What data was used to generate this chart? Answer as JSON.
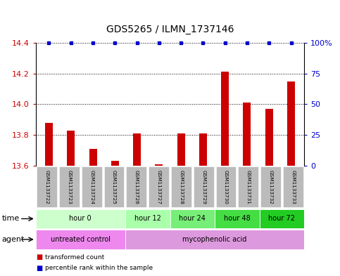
{
  "title": "GDS5265 / ILMN_1737146",
  "samples": [
    "GSM1133722",
    "GSM1133723",
    "GSM1133724",
    "GSM1133725",
    "GSM1133726",
    "GSM1133727",
    "GSM1133728",
    "GSM1133729",
    "GSM1133730",
    "GSM1133731",
    "GSM1133732",
    "GSM1133733"
  ],
  "transformed_counts": [
    13.88,
    13.83,
    13.71,
    13.63,
    13.81,
    13.61,
    13.81,
    13.81,
    14.21,
    14.01,
    13.97,
    14.15
  ],
  "percentile_ranks": [
    100,
    100,
    100,
    100,
    100,
    100,
    100,
    100,
    100,
    100,
    100,
    100
  ],
  "ylim_left": [
    13.6,
    14.4
  ],
  "ylim_right": [
    0,
    100
  ],
  "yticks_left": [
    13.6,
    13.8,
    14.0,
    14.2,
    14.4
  ],
  "yticks_right": [
    0,
    25,
    50,
    75,
    100
  ],
  "bar_color": "#cc0000",
  "dot_color": "#0000cc",
  "time_groups": [
    {
      "label": "hour 0",
      "start": 0,
      "end": 3,
      "color": "#ccffcc"
    },
    {
      "label": "hour 12",
      "start": 4,
      "end": 5,
      "color": "#aaffaa"
    },
    {
      "label": "hour 24",
      "start": 6,
      "end": 7,
      "color": "#77ee77"
    },
    {
      "label": "hour 48",
      "start": 8,
      "end": 9,
      "color": "#44dd44"
    },
    {
      "label": "hour 72",
      "start": 10,
      "end": 11,
      "color": "#22cc22"
    }
  ],
  "agent_groups": [
    {
      "label": "untreated control",
      "start": 0,
      "end": 3,
      "color": "#ee88ee"
    },
    {
      "label": "mycophenolic acid",
      "start": 4,
      "end": 11,
      "color": "#dd99dd"
    }
  ],
  "legend_bar_label": "transformed count",
  "legend_dot_label": "percentile rank within the sample",
  "sample_bg_color": "#bbbbbb",
  "sample_sep_color": "#ffffff",
  "title_fontsize": 10,
  "tick_fontsize": 8,
  "label_fontsize": 7,
  "row_label_fontsize": 8
}
